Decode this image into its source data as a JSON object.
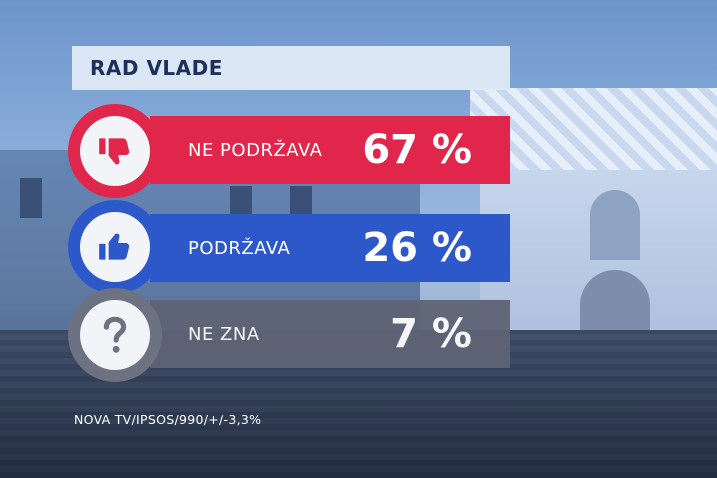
{
  "title": "RAD VLADE",
  "chart_data": {
    "type": "bar",
    "title": "RAD VLADE",
    "categories": [
      "NE PODRŽAVA",
      "PODRŽAVA",
      "NE ZNA"
    ],
    "values": [
      67,
      26,
      7
    ],
    "value_labels": [
      "67 %",
      "26 %",
      "7 %"
    ],
    "colors": [
      "#e0264a",
      "#2c58c9",
      "#5e6474"
    ],
    "icons": [
      "thumbs-down-icon",
      "thumbs-up-icon",
      "question-mark-icon"
    ]
  },
  "source": "NOVA TV/IPSOS/990/+/-3,3%"
}
